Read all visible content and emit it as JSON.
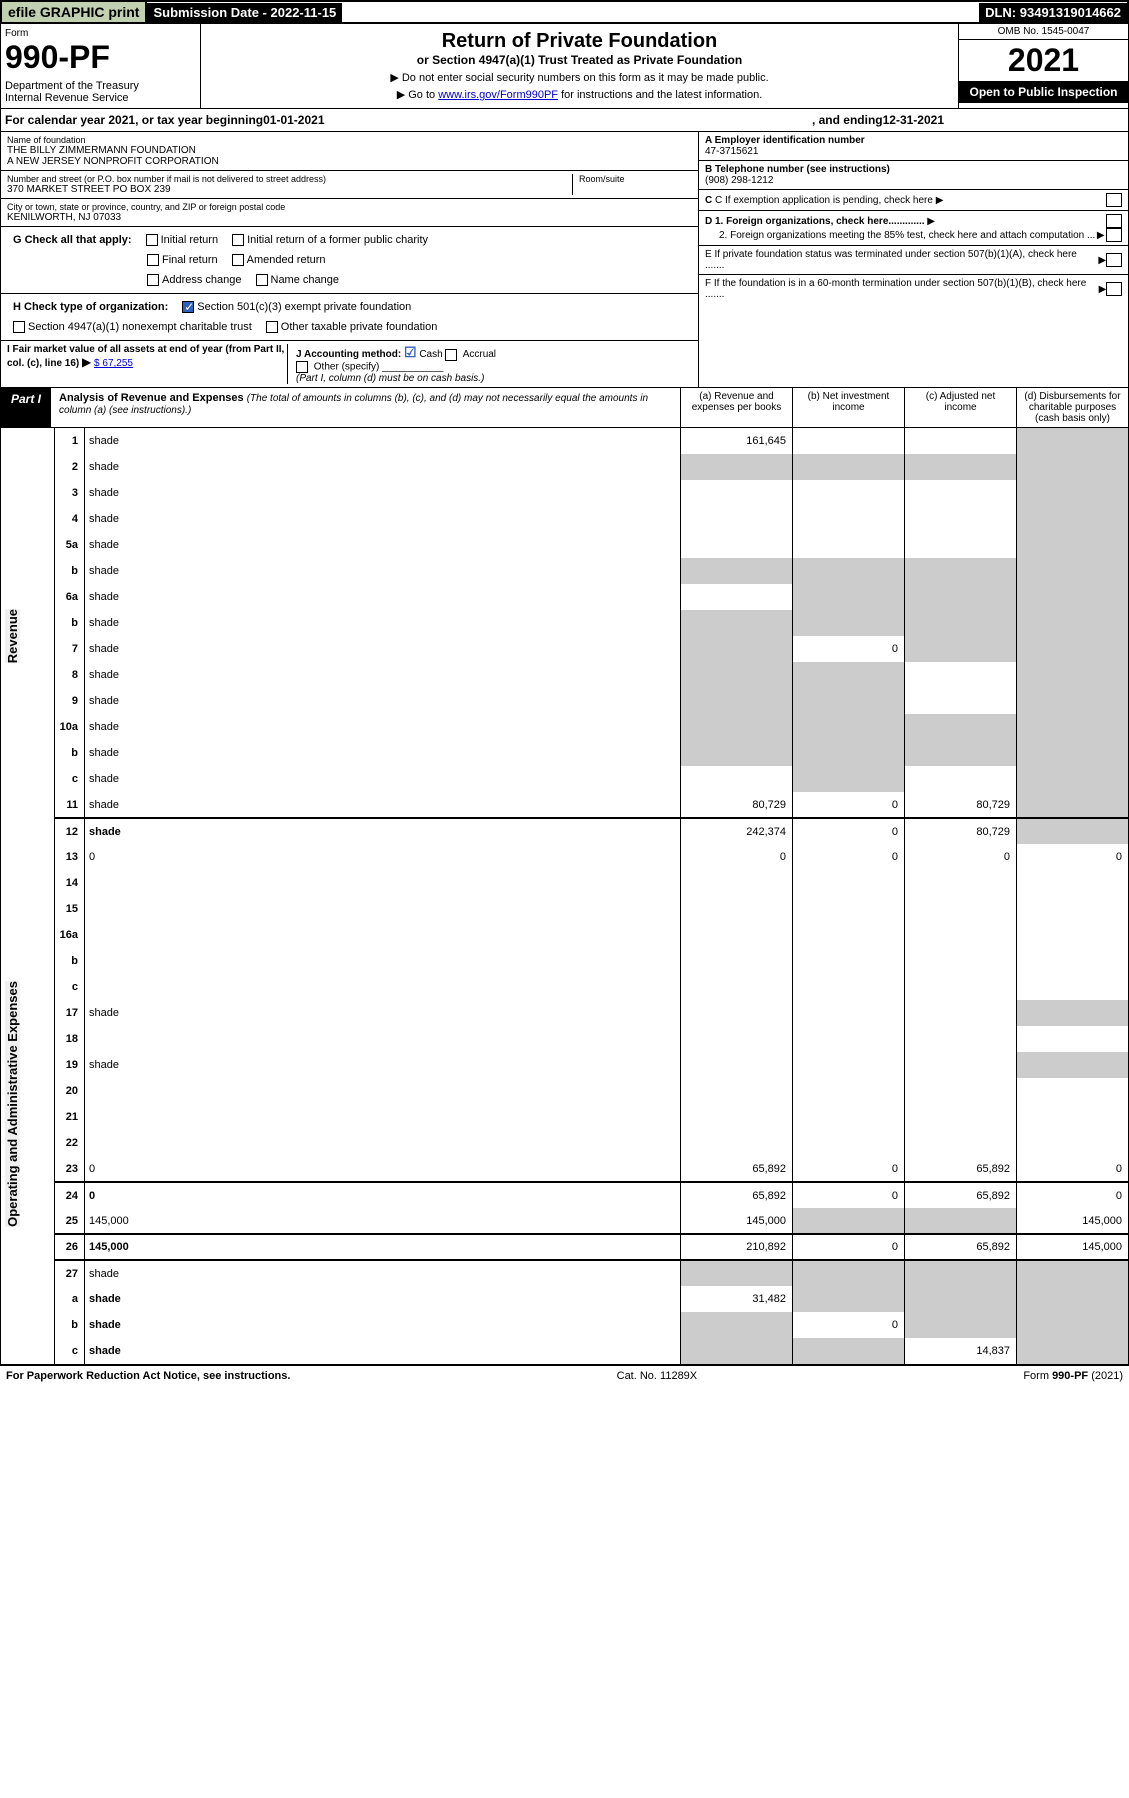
{
  "topbar": {
    "efile": "efile GRAPHIC print",
    "subdate_lbl": "Submission Date - ",
    "subdate": "2022-11-15",
    "dln_lbl": "DLN: ",
    "dln": "93491319014662"
  },
  "header": {
    "form_label": "Form",
    "form_num": "990-PF",
    "dept": "Department of the Treasury\nInternal Revenue Service",
    "title": "Return of Private Foundation",
    "subtitle": "or Section 4947(a)(1) Trust Treated as Private Foundation",
    "note1": "▶ Do not enter social security numbers on this form as it may be made public.",
    "note2_pre": "▶ Go to ",
    "note2_link": "www.irs.gov/Form990PF",
    "note2_post": " for instructions and the latest information.",
    "omb": "OMB No. 1545-0047",
    "year": "2021",
    "open": "Open to Public Inspection"
  },
  "cal": {
    "text_pre": "For calendar year 2021, or tax year beginning ",
    "begin": "01-01-2021",
    "mid": " , and ending ",
    "end": "12-31-2021"
  },
  "info": {
    "name_lbl": "Name of foundation",
    "name1": "THE BILLY ZIMMERMANN FOUNDATION",
    "name2": "A NEW JERSEY NONPROFIT CORPORATION",
    "addr_lbl": "Number and street (or P.O. box number if mail is not delivered to street address)",
    "addr": "370 MARKET STREET PO BOX 239",
    "room_lbl": "Room/suite",
    "city_lbl": "City or town, state or province, country, and ZIP or foreign postal code",
    "city": "KENILWORTH, NJ  07033",
    "ein_lbl": "A Employer identification number",
    "ein": "47-3715621",
    "tel_lbl": "B Telephone number (see instructions)",
    "tel": "(908) 298-1212",
    "c_lbl": "C If exemption application is pending, check here",
    "d1_lbl": "D 1. Foreign organizations, check here.............",
    "d2_lbl": "2. Foreign organizations meeting the 85% test, check here and attach computation ...",
    "e_lbl": "E  If private foundation status was terminated under section 507(b)(1)(A), check here .......",
    "f_lbl": "F  If the foundation is in a 60-month termination under section 507(b)(1)(B), check here .......",
    "g_lbl": "G Check all that apply:",
    "g_opts": [
      "Initial return",
      "Initial return of a former public charity",
      "Final return",
      "Amended return",
      "Address change",
      "Name change"
    ],
    "h_lbl": "H Check type of organization:",
    "h_opt1": "Section 501(c)(3) exempt private foundation",
    "h_opt2": "Section 4947(a)(1) nonexempt charitable trust",
    "h_opt3": "Other taxable private foundation",
    "i_lbl": "I Fair market value of all assets at end of year (from Part II, col. (c), line 16)",
    "i_val": "$  67,255",
    "j_lbl": "J Accounting method:",
    "j_cash": "Cash",
    "j_accrual": "Accrual",
    "j_other": "Other (specify)",
    "j_note": "(Part I, column (d) must be on cash basis.)"
  },
  "part1": {
    "label": "Part I",
    "title": "Analysis of Revenue and Expenses",
    "title_note": " (The total of amounts in columns (b), (c), and (d) may not necessarily equal the amounts in column (a) (see instructions).)",
    "col_a": "(a)   Revenue and expenses per books",
    "col_b": "(b)  Net investment income",
    "col_c": "(c)  Adjusted net income",
    "col_d": "(d)  Disbursements for charitable purposes (cash basis only)"
  },
  "side_labels": {
    "revenue": "Revenue",
    "expenses": "Operating and Administrative Expenses"
  },
  "rows": [
    {
      "n": "1",
      "d": "shade",
      "a": "161,645",
      "b": "",
      "c": ""
    },
    {
      "n": "2",
      "d": "shade",
      "a": "shade",
      "b": "shade",
      "c": "shade"
    },
    {
      "n": "3",
      "d": "shade",
      "a": "",
      "b": "",
      "c": ""
    },
    {
      "n": "4",
      "d": "shade",
      "a": "",
      "b": "",
      "c": ""
    },
    {
      "n": "5a",
      "d": "shade",
      "a": "",
      "b": "",
      "c": ""
    },
    {
      "n": "b",
      "d": "shade",
      "a": "shade",
      "b": "shade",
      "c": "shade"
    },
    {
      "n": "6a",
      "d": "shade",
      "a": "",
      "b": "shade",
      "c": "shade"
    },
    {
      "n": "b",
      "d": "shade",
      "a": "shade",
      "b": "shade",
      "c": "shade"
    },
    {
      "n": "7",
      "d": "shade",
      "a": "shade",
      "b": "0",
      "c": "shade"
    },
    {
      "n": "8",
      "d": "shade",
      "a": "shade",
      "b": "shade",
      "c": ""
    },
    {
      "n": "9",
      "d": "shade",
      "a": "shade",
      "b": "shade",
      "c": ""
    },
    {
      "n": "10a",
      "d": "shade",
      "a": "shade",
      "b": "shade",
      "c": "shade"
    },
    {
      "n": "b",
      "d": "shade",
      "a": "shade",
      "b": "shade",
      "c": "shade"
    },
    {
      "n": "c",
      "d": "shade",
      "a": "",
      "b": "shade",
      "c": ""
    },
    {
      "n": "11",
      "d": "shade",
      "a": "80,729",
      "b": "0",
      "c": "80,729"
    },
    {
      "n": "12",
      "d": "shade",
      "a": "242,374",
      "b": "0",
      "c": "80,729",
      "bold": true,
      "thick": true
    },
    {
      "n": "13",
      "d": "0",
      "a": "0",
      "b": "0",
      "c": "0"
    },
    {
      "n": "14",
      "d": "",
      "a": "",
      "b": "",
      "c": ""
    },
    {
      "n": "15",
      "d": "",
      "a": "",
      "b": "",
      "c": ""
    },
    {
      "n": "16a",
      "d": "",
      "a": "",
      "b": "",
      "c": ""
    },
    {
      "n": "b",
      "d": "",
      "a": "",
      "b": "",
      "c": ""
    },
    {
      "n": "c",
      "d": "",
      "a": "",
      "b": "",
      "c": ""
    },
    {
      "n": "17",
      "d": "shade",
      "a": "",
      "b": "",
      "c": ""
    },
    {
      "n": "18",
      "d": "",
      "a": "",
      "b": "",
      "c": ""
    },
    {
      "n": "19",
      "d": "shade",
      "a": "",
      "b": "",
      "c": ""
    },
    {
      "n": "20",
      "d": "",
      "a": "",
      "b": "",
      "c": ""
    },
    {
      "n": "21",
      "d": "",
      "a": "",
      "b": "",
      "c": ""
    },
    {
      "n": "22",
      "d": "",
      "a": "",
      "b": "",
      "c": ""
    },
    {
      "n": "23",
      "d": "0",
      "a": "65,892",
      "b": "0",
      "c": "65,892"
    },
    {
      "n": "24",
      "d": "0",
      "a": "65,892",
      "b": "0",
      "c": "65,892",
      "bold": true,
      "thick": true
    },
    {
      "n": "25",
      "d": "145,000",
      "a": "145,000",
      "b": "shade",
      "c": "shade"
    },
    {
      "n": "26",
      "d": "145,000",
      "a": "210,892",
      "b": "0",
      "c": "65,892",
      "bold": true,
      "thick": true
    },
    {
      "n": "27",
      "d": "shade",
      "a": "shade",
      "b": "shade",
      "c": "shade",
      "thick": true
    },
    {
      "n": "a",
      "d": "shade",
      "a": "31,482",
      "b": "shade",
      "c": "shade",
      "bold": true
    },
    {
      "n": "b",
      "d": "shade",
      "a": "shade",
      "b": "0",
      "c": "shade",
      "bold": true
    },
    {
      "n": "c",
      "d": "shade",
      "a": "shade",
      "b": "shade",
      "c": "14,837",
      "bold": true
    }
  ],
  "footer": {
    "left": "For Paperwork Reduction Act Notice, see instructions.",
    "mid": "Cat. No. 11289X",
    "right": "Form 990-PF (2021)"
  }
}
